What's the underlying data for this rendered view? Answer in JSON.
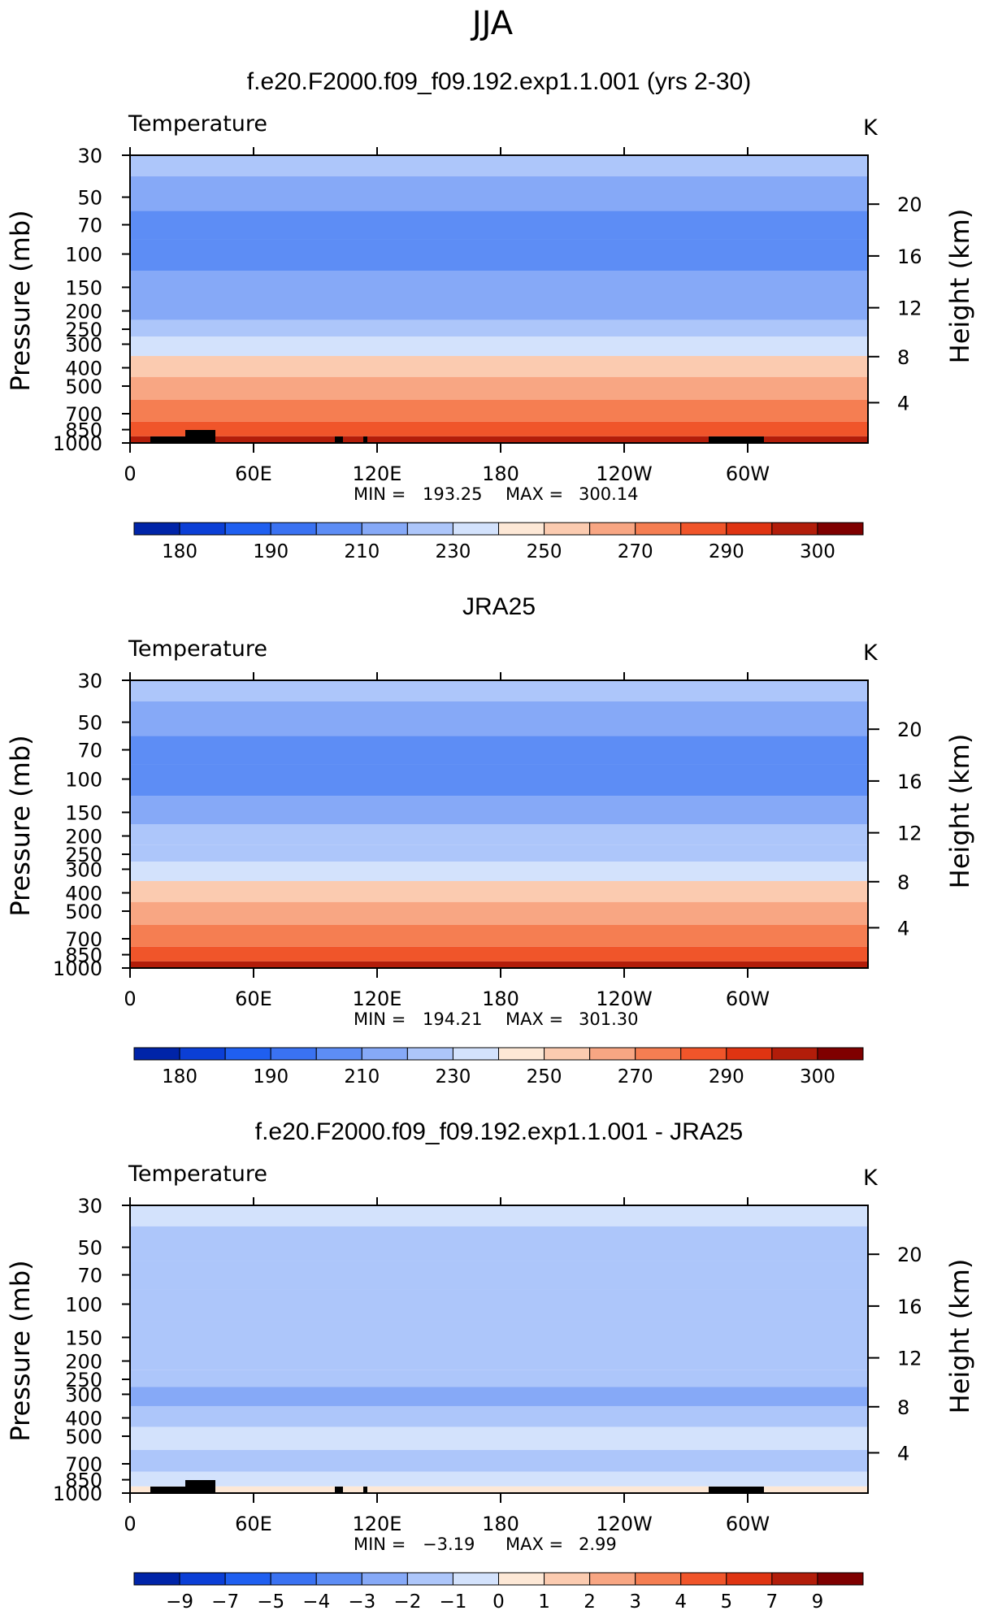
{
  "figure": {
    "title": "JJA"
  },
  "chart_data": [
    {
      "type": "heatmap",
      "title": "f.e20.F2000.f09_f09.192.exp1.1.001 (yrs 2-30)",
      "left_label": "Temperature",
      "units": "K",
      "ylabel": "Pressure (mb)",
      "ylabel_right": "Height (km)",
      "x_ticks": [
        "0",
        "60E",
        "120E",
        "180",
        "120W",
        "60W"
      ],
      "y_ticks": [
        "30",
        "50",
        "70",
        "100",
        "150",
        "200",
        "250",
        "300",
        "400",
        "500",
        "700",
        "850",
        "1000"
      ],
      "height_ticks": [
        "20",
        "16",
        "12",
        "8",
        "4"
      ],
      "min_label": "MIN",
      "max_label": "MAX",
      "min": "193.25",
      "max": "300.14",
      "levels_mb": [
        30,
        50,
        70,
        100,
        150,
        200,
        250,
        300,
        400,
        500,
        700,
        850,
        1000
      ],
      "zonal_mean_K": [
        222,
        212,
        205,
        200,
        211,
        219,
        227,
        235,
        250,
        260,
        278,
        288,
        296
      ],
      "colorbar_ticks": [
        "180",
        "190",
        "210",
        "230",
        "250",
        "270",
        "290",
        "300"
      ]
    },
    {
      "type": "heatmap",
      "title": "JRA25",
      "left_label": "Temperature",
      "units": "K",
      "ylabel": "Pressure (mb)",
      "ylabel_right": "Height (km)",
      "x_ticks": [
        "0",
        "60E",
        "120E",
        "180",
        "120W",
        "60W"
      ],
      "y_ticks": [
        "30",
        "50",
        "70",
        "100",
        "150",
        "200",
        "250",
        "300",
        "400",
        "500",
        "700",
        "850",
        "1000"
      ],
      "height_ticks": [
        "20",
        "16",
        "12",
        "8",
        "4"
      ],
      "min_label": "MIN",
      "max_label": "MAX",
      "min": "194.21",
      "max": "301.30",
      "levels_mb": [
        30,
        50,
        70,
        100,
        150,
        200,
        250,
        300,
        400,
        500,
        700,
        850,
        1000
      ],
      "zonal_mean_K": [
        223,
        213,
        206,
        201,
        212,
        220,
        228,
        236,
        251,
        261,
        279,
        289,
        297
      ],
      "colorbar_ticks": [
        "180",
        "190",
        "210",
        "230",
        "250",
        "270",
        "290",
        "300"
      ]
    },
    {
      "type": "heatmap",
      "title": "f.e20.F2000.f09_f09.192.exp1.1.001 - JRA25",
      "left_label": "Temperature",
      "units": "K",
      "ylabel": "Pressure (mb)",
      "ylabel_right": "Height (km)",
      "x_ticks": [
        "0",
        "60E",
        "120E",
        "180",
        "120W",
        "60W"
      ],
      "y_ticks": [
        "30",
        "50",
        "70",
        "100",
        "150",
        "200",
        "250",
        "300",
        "400",
        "500",
        "700",
        "850",
        "1000"
      ],
      "height_ticks": [
        "20",
        "16",
        "12",
        "8",
        "4"
      ],
      "min_label": "MIN",
      "max_label": "MAX",
      "min": "−3.19",
      "max": "2.99",
      "levels_mb": [
        30,
        50,
        70,
        100,
        150,
        200,
        250,
        300,
        400,
        500,
        700,
        850,
        1000
      ],
      "difference_K": [
        -0.8,
        -1.6,
        -1.8,
        -1.2,
        -1.6,
        -2.0,
        -1.8,
        -2.1,
        -1.5,
        -0.8,
        -1.2,
        -0.6,
        0.5
      ],
      "colorbar_ticks": [
        "−9",
        "−7",
        "−5",
        "−4",
        "−3",
        "−2",
        "−1",
        "0",
        "1",
        "2",
        "3",
        "4",
        "5",
        "7",
        "9"
      ]
    }
  ],
  "colors": {
    "scale": [
      "#00007f",
      "#0024a8",
      "#0b3fd6",
      "#1f5ff0",
      "#3a72f2",
      "#5d8df5",
      "#86a9f7",
      "#adc6fa",
      "#d3e2fc",
      "#fde8d6",
      "#fbcbb0",
      "#f8a683",
      "#f57e52",
      "#f0552a",
      "#df3412",
      "#b21d0a",
      "#7f0000"
    ],
    "land": "#000000"
  }
}
